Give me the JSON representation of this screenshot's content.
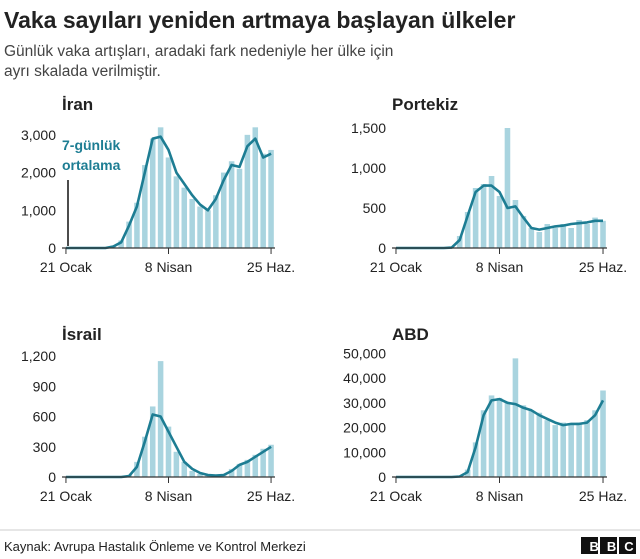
{
  "title": "Vaka sayıları yeniden artmaya başlayan ülkeler",
  "subtitle": [
    "Günlük vaka artışları, aradaki fark nedeniyle her ülke için",
    "ayrı skalada verilmiştir."
  ],
  "source": "Kaynak: Avrupa Hastalık Önleme ve Kontrol Merkezi",
  "logo": "BBC",
  "chart_data": [
    {
      "type": "bar",
      "title": "İran",
      "annotation": [
        "7-günlük",
        "ortalama"
      ],
      "categories": [
        "21 Ocak",
        null,
        null,
        null,
        null,
        null,
        null,
        null,
        null,
        null,
        null,
        null,
        null,
        "8 Nisan",
        null,
        null,
        null,
        null,
        null,
        null,
        null,
        null,
        null,
        null,
        null,
        null,
        "25 Haz."
      ],
      "series": [
        {
          "type": "bar",
          "color": "#a9d4df",
          "values": [
            0,
            0,
            0,
            0,
            0,
            0,
            60,
            200,
            700,
            1200,
            2200,
            2900,
            3200,
            2400,
            1900,
            1600,
            1300,
            1100,
            1000,
            1400,
            2000,
            2300,
            2100,
            3000,
            3200,
            2500,
            2600
          ]
        },
        {
          "type": "line",
          "color": "#1d7d93",
          "values": [
            0,
            0,
            0,
            0,
            0,
            0,
            40,
            150,
            600,
            1100,
            2000,
            2900,
            2950,
            2600,
            2000,
            1700,
            1400,
            1150,
            1000,
            1300,
            1800,
            2200,
            2150,
            2700,
            2900,
            2400,
            2500
          ]
        }
      ],
      "ylim": [
        0,
        3500
      ],
      "yticks": [
        0,
        {
          "value": 1000,
          "label": "1,000"
        },
        {
          "value": 2000,
          "label": "2,000"
        },
        {
          "value": 3000,
          "label": "3,000"
        }
      ]
    },
    {
      "type": "bar",
      "title": "Portekiz",
      "categories": [
        "21 Ocak",
        null,
        null,
        null,
        null,
        null,
        null,
        null,
        null,
        null,
        null,
        null,
        null,
        "8 Nisan",
        null,
        null,
        null,
        null,
        null,
        null,
        null,
        null,
        null,
        null,
        null,
        null,
        "25 Haz."
      ],
      "series": [
        {
          "type": "bar",
          "color": "#a9d4df",
          "values": [
            0,
            0,
            0,
            0,
            0,
            0,
            0,
            10,
            150,
            450,
            750,
            800,
            900,
            650,
            1500,
            600,
            400,
            250,
            200,
            300,
            250,
            300,
            250,
            350,
            300,
            380,
            340
          ]
        },
        {
          "type": "line",
          "color": "#1d7d93",
          "values": [
            0,
            0,
            0,
            0,
            0,
            0,
            0,
            5,
            100,
            400,
            700,
            780,
            780,
            700,
            500,
            520,
            380,
            250,
            230,
            250,
            270,
            280,
            300,
            310,
            320,
            340,
            340
          ]
        }
      ],
      "ylim": [
        0,
        1650
      ],
      "yticks": [
        0,
        500,
        {
          "value": 1000,
          "label": "1,000"
        },
        {
          "value": 1500,
          "label": "1,500"
        }
      ]
    },
    {
      "type": "bar",
      "title": "İsrail",
      "categories": [
        "21 Ocak",
        null,
        null,
        null,
        null,
        null,
        null,
        null,
        null,
        null,
        null,
        null,
        null,
        "8 Nisan",
        null,
        null,
        null,
        null,
        null,
        null,
        null,
        null,
        null,
        null,
        null,
        null,
        "25 Haz."
      ],
      "series": [
        {
          "type": "bar",
          "color": "#a9d4df",
          "values": [
            0,
            0,
            0,
            0,
            0,
            0,
            0,
            0,
            20,
            150,
            400,
            700,
            1150,
            500,
            250,
            150,
            60,
            30,
            15,
            10,
            25,
            80,
            130,
            170,
            220,
            280,
            320
          ]
        },
        {
          "type": "line",
          "color": "#1d7d93",
          "values": [
            0,
            0,
            0,
            0,
            0,
            0,
            0,
            0,
            10,
            100,
            350,
            620,
            600,
            450,
            300,
            150,
            80,
            40,
            20,
            15,
            20,
            60,
            120,
            150,
            200,
            250,
            300
          ]
        }
      ],
      "ylim": [
        0,
        1300
      ],
      "yticks": [
        0,
        300,
        600,
        900,
        {
          "value": 1200,
          "label": "1,200"
        }
      ]
    },
    {
      "type": "bar",
      "title": "ABD",
      "categories": [
        "21 Ocak",
        null,
        null,
        null,
        null,
        null,
        null,
        null,
        null,
        null,
        null,
        null,
        null,
        "8 Nisan",
        null,
        null,
        null,
        null,
        null,
        null,
        null,
        null,
        null,
        null,
        null,
        null,
        "25 Haz."
      ],
      "series": [
        {
          "type": "bar",
          "color": "#a9d4df",
          "values": [
            0,
            0,
            0,
            0,
            0,
            0,
            0,
            0,
            300,
            3000,
            14000,
            27000,
            33000,
            32000,
            30000,
            48000,
            29000,
            27000,
            26000,
            23000,
            21000,
            22000,
            21000,
            22000,
            23000,
            27000,
            35000
          ]
        },
        {
          "type": "line",
          "color": "#1d7d93",
          "values": [
            0,
            0,
            0,
            0,
            0,
            0,
            0,
            0,
            200,
            2000,
            12000,
            25000,
            31000,
            31500,
            30000,
            29500,
            28000,
            27000,
            25000,
            23500,
            22000,
            21000,
            21500,
            21500,
            22000,
            25000,
            31000
          ]
        }
      ],
      "ylim": [
        0,
        53000
      ],
      "yticks": [
        0,
        {
          "value": 10000,
          "label": "10,000"
        },
        {
          "value": 20000,
          "label": "20,000"
        },
        {
          "value": 30000,
          "label": "30,000"
        },
        {
          "value": 40000,
          "label": "40,000"
        },
        {
          "value": 50000,
          "label": "50,000"
        }
      ]
    }
  ]
}
